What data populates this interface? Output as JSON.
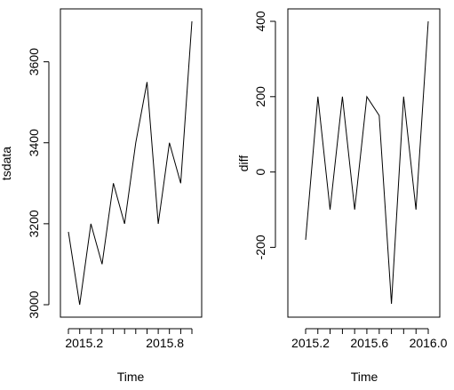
{
  "chart_data": [
    {
      "type": "line",
      "xlabel": "Time",
      "ylabel": "tsdata",
      "xlim": [
        2015.083,
        2016.0
      ],
      "ylim": [
        3000,
        3700
      ],
      "x_ticks": [
        "2015.2",
        "2015.8"
      ],
      "y_ticks": [
        "3000",
        "3200",
        "3400",
        "3600"
      ],
      "series": [
        {
          "x": [
            2015.083,
            2015.167,
            2015.25,
            2015.333,
            2015.417,
            2015.5,
            2015.583,
            2015.667,
            2015.75,
            2015.833,
            2015.917,
            2016.0
          ],
          "values": [
            3180,
            3000,
            3200,
            3100,
            3300,
            3200,
            3400,
            3550,
            3200,
            3400,
            3300,
            3700
          ]
        }
      ]
    },
    {
      "type": "line",
      "xlabel": "Time",
      "ylabel": "diff",
      "xlim": [
        2015.167,
        2016.0
      ],
      "ylim": [
        -350,
        400
      ],
      "x_ticks": [
        "2015.2",
        "2015.6",
        "2016.0"
      ],
      "y_ticks": [
        "-200",
        "0",
        "200",
        "400"
      ],
      "series": [
        {
          "x": [
            2015.167,
            2015.25,
            2015.333,
            2015.417,
            2015.5,
            2015.583,
            2015.667,
            2015.75,
            2015.833,
            2015.917,
            2016.0
          ],
          "values": [
            -180,
            200,
            -100,
            200,
            -100,
            200,
            150,
            -350,
            200,
            -100,
            400
          ]
        }
      ]
    }
  ]
}
